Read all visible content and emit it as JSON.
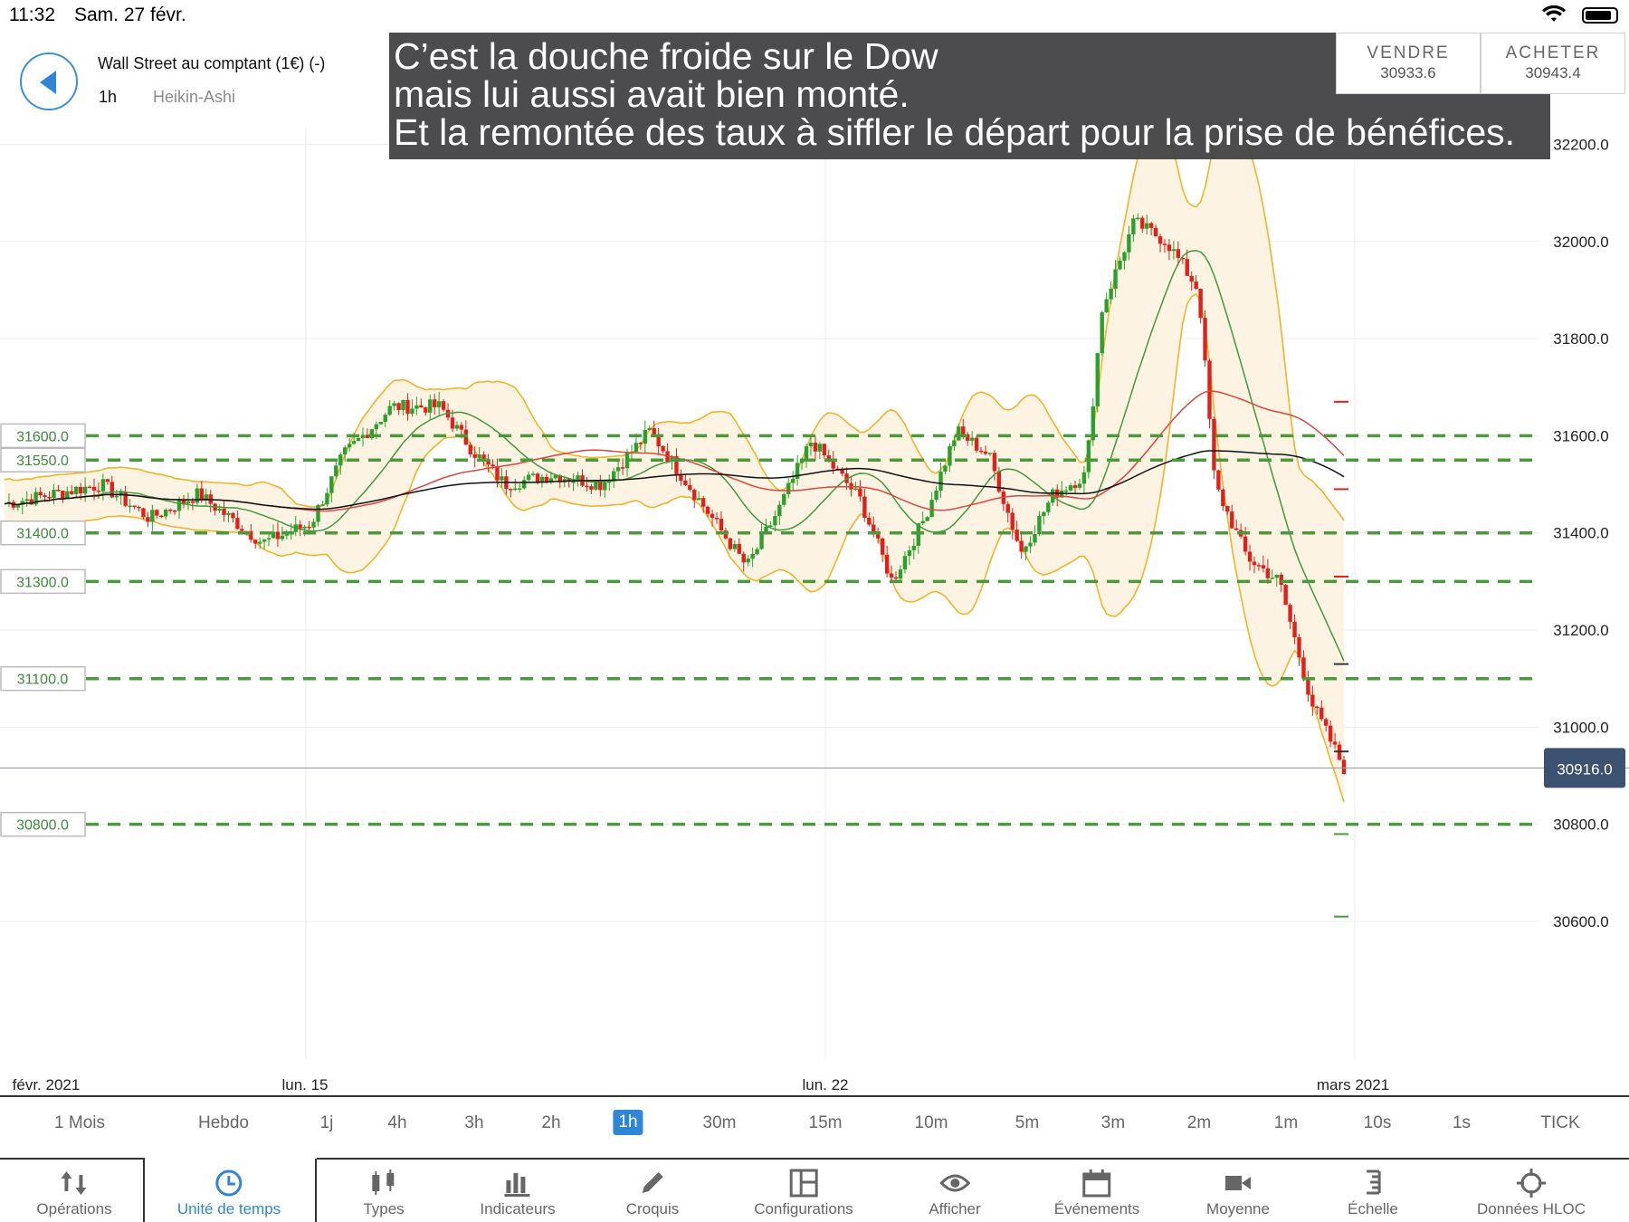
{
  "status_bar": {
    "time": "11:32",
    "date": "Sam. 27 févr."
  },
  "header": {
    "instrument": "Wall Street au comptant (1€) (-)",
    "timeframe": "1h",
    "chart_type": "Heikin-Ashi"
  },
  "annotation": {
    "lines": [
      "C’est la douche froide sur le Dow",
      "mais lui aussi avait bien monté.",
      "Et la remontée des taux à siffler le départ pour la prise de bénéfices."
    ]
  },
  "trade": {
    "sell_label": "VENDRE",
    "sell_price": "30933.6",
    "buy_label": "ACHETER",
    "buy_price": "30943.4"
  },
  "price_axis": {
    "ticks": [
      "32200.0",
      "32000.0",
      "31800.0",
      "31600.0",
      "31400.0",
      "31200.0",
      "31000.0",
      "30800.0",
      "30600.0"
    ],
    "current_price_label": "30916.0"
  },
  "time_axis": {
    "labels": [
      "févr. 2021",
      "lun. 15",
      "lun. 22",
      "mars 2021"
    ]
  },
  "support_levels": {
    "labels": [
      "31600.0",
      "31550.0",
      "31400.0",
      "31300.0",
      "31100.0",
      "30800.0"
    ]
  },
  "timeframes": {
    "items": [
      "1 Mois",
      "Hebdo",
      "1j",
      "4h",
      "3h",
      "2h",
      "1h",
      "30m",
      "15m",
      "10m",
      "5m",
      "3m",
      "2m",
      "1m",
      "10s",
      "1s",
      "TICK"
    ],
    "active": "1h"
  },
  "toolbar": {
    "items": [
      {
        "label": "Opérations",
        "icon": "arrows-updown-icon"
      },
      {
        "label": "Unité de temps",
        "icon": "clock-icon"
      },
      {
        "label": "Types",
        "icon": "candles-icon"
      },
      {
        "label": "Indicateurs",
        "icon": "bar-chart-icon"
      },
      {
        "label": "Croquis",
        "icon": "pencil-icon"
      },
      {
        "label": "Configurations",
        "icon": "layout-icon"
      },
      {
        "label": "Afficher",
        "icon": "eye-icon"
      },
      {
        "label": "Événements",
        "icon": "calendar-icon"
      },
      {
        "label": "Moyenne",
        "icon": "camera-icon"
      },
      {
        "label": "Échelle",
        "icon": "scale-icon"
      },
      {
        "label": "Données HLOC",
        "icon": "crosshair-icon"
      }
    ],
    "active": "Unité de temps"
  },
  "colors": {
    "up": "#2ca02c",
    "down": "#e0201b",
    "bollinger": "#f0b429",
    "bollinger_fill": "#fdf3e3",
    "ma_green": "#3f9a3f",
    "ma_red": "#d9473f",
    "ma_black": "#111111",
    "support": "#4a9a3a",
    "accent": "#2f86d6"
  },
  "chart_data": {
    "type": "candlestick",
    "title": "",
    "series": [
      {
        "name": "",
        "x": [
          "févr. 2021",
          "lun. 15",
          "lun. 22",
          "mars 2021"
        ],
        "values": [
          31450,
          31600,
          31350,
          30916
        ]
      }
    ],
    "price_path": [
      [
        0.0,
        31460
      ],
      [
        0.06,
        31500
      ],
      [
        0.09,
        31430
      ],
      [
        0.12,
        31480
      ],
      [
        0.16,
        31380
      ],
      [
        0.19,
        31420
      ],
      [
        0.21,
        31560
      ],
      [
        0.24,
        31660
      ],
      [
        0.27,
        31660
      ],
      [
        0.29,
        31570
      ],
      [
        0.31,
        31500
      ],
      [
        0.34,
        31520
      ],
      [
        0.37,
        31500
      ],
      [
        0.4,
        31610
      ],
      [
        0.43,
        31470
      ],
      [
        0.46,
        31330
      ],
      [
        0.48,
        31450
      ],
      [
        0.5,
        31590
      ],
      [
        0.53,
        31470
      ],
      [
        0.55,
        31300
      ],
      [
        0.57,
        31430
      ],
      [
        0.59,
        31610
      ],
      [
        0.61,
        31560
      ],
      [
        0.63,
        31360
      ],
      [
        0.65,
        31480
      ],
      [
        0.67,
        31520
      ],
      [
        0.68,
        31860
      ],
      [
        0.7,
        32040
      ],
      [
        0.72,
        32000
      ],
      [
        0.74,
        31900
      ],
      [
        0.75,
        31500
      ],
      [
        0.77,
        31350
      ],
      [
        0.79,
        31300
      ],
      [
        0.81,
        31050
      ],
      [
        0.83,
        30916
      ]
    ],
    "ylim": [
      30580,
      32320
    ],
    "y_ticks": [
      32200,
      32000,
      31800,
      31600,
      31400,
      31200,
      31000,
      30800,
      30600
    ],
    "support_levels": [
      31600,
      31550,
      31400,
      31300,
      31100,
      30800
    ],
    "current_price": 30916,
    "grid": true,
    "legend": "none"
  }
}
